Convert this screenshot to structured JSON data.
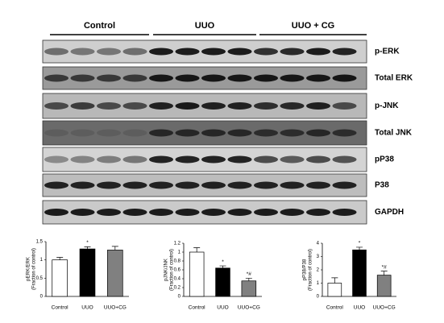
{
  "blot": {
    "groups": [
      "Control",
      "UUO",
      "UUO + CG"
    ],
    "bands": [
      "p-ERK",
      "Total ERK",
      "p-JNK",
      "Total JNK",
      "pP38",
      "P38",
      "GAPDH"
    ]
  },
  "chart_data": [
    {
      "type": "bar",
      "ylabel": [
        "pERK/ERK",
        "(Fraction of control)"
      ],
      "categories": [
        "Control",
        "UUO",
        "UUO+CG"
      ],
      "values": [
        1.0,
        1.3,
        1.27
      ],
      "errors": [
        0.07,
        0.06,
        0.1
      ],
      "colors": [
        "#ffffff",
        "#000000",
        "#808080"
      ],
      "markers": [
        null,
        "*",
        null
      ],
      "ylim": [
        0,
        1.5
      ],
      "yticks": [
        0,
        0.5,
        1,
        1.5
      ]
    },
    {
      "type": "bar",
      "ylabel": [
        "pJNK/JNK",
        "(Fraction of control)"
      ],
      "categories": [
        "Control",
        "UUO",
        "UUO+CG"
      ],
      "values": [
        1.0,
        0.64,
        0.35
      ],
      "errors": [
        0.1,
        0.05,
        0.06
      ],
      "colors": [
        "#ffffff",
        "#000000",
        "#808080"
      ],
      "markers": [
        null,
        "*",
        "*#"
      ],
      "ylim": [
        0,
        1.2
      ],
      "yticks": [
        0,
        0.2,
        0.4,
        0.6,
        0.8,
        1,
        1.2
      ]
    },
    {
      "type": "bar",
      "ylabel": [
        "pP38/P38",
        "(Fraction of control)"
      ],
      "categories": [
        "Control",
        "UUO",
        "UUO+CG"
      ],
      "values": [
        1.0,
        3.5,
        1.6
      ],
      "errors": [
        0.4,
        0.2,
        0.3
      ],
      "colors": [
        "#ffffff",
        "#000000",
        "#808080"
      ],
      "markers": [
        null,
        "*",
        "*#"
      ],
      "ylim": [
        0,
        4
      ],
      "yticks": [
        0,
        1,
        2,
        3,
        4
      ]
    }
  ]
}
